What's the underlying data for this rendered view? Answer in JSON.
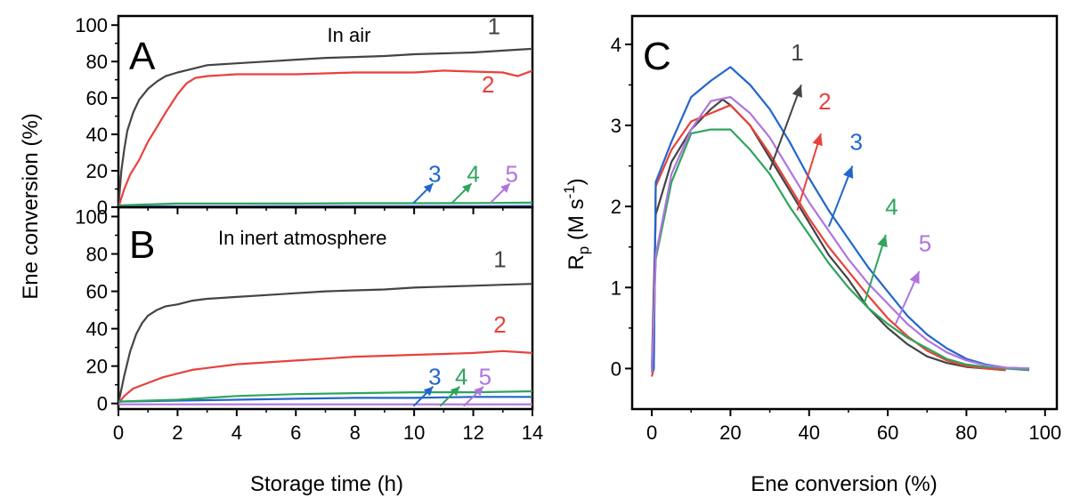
{
  "colors": {
    "1": "#444444",
    "2": "#e8413c",
    "3": "#2266cc",
    "4": "#2ea55c",
    "5": "#b074e0"
  },
  "chart_data": [
    {
      "panel": "A",
      "type": "line",
      "annotation": "In air",
      "xlabel": "Storage time (h)",
      "ylabel": "Ene conversion (%)",
      "xlim": [
        0,
        14
      ],
      "ylim": [
        0,
        105
      ],
      "xticks": [
        "0",
        "2",
        "4",
        "6",
        "8",
        "10",
        "12",
        "14"
      ],
      "yticks": [
        "0",
        "20",
        "40",
        "60",
        "80",
        "100"
      ],
      "series": [
        {
          "label": "1",
          "x": [
            0,
            0.1,
            0.2,
            0.3,
            0.5,
            0.7,
            1.0,
            1.3,
            1.6,
            2.0,
            2.5,
            3.0,
            4.0,
            5.0,
            6.0,
            7.0,
            8.0,
            9.0,
            10.0,
            11.0,
            12.0,
            13.0,
            14.0
          ],
          "y": [
            0,
            20,
            32,
            42,
            52,
            59,
            65,
            69,
            72,
            74,
            76,
            78,
            79,
            80,
            81,
            82,
            82.5,
            83,
            84,
            84.5,
            85,
            86,
            87
          ]
        },
        {
          "label": "2",
          "x": [
            0,
            0.2,
            0.4,
            0.7,
            1.0,
            1.3,
            1.6,
            2.0,
            2.3,
            2.6,
            3.0,
            4.0,
            5.0,
            6.0,
            7.0,
            8.0,
            9.0,
            10.0,
            11.0,
            12.0,
            13.0,
            13.5,
            14.0
          ],
          "y": [
            0,
            10,
            18,
            26,
            36,
            44,
            52,
            62,
            68,
            71,
            72,
            73,
            73,
            73,
            73.5,
            74,
            74,
            74,
            75,
            74.5,
            74,
            72,
            75
          ]
        },
        {
          "label": "3",
          "x": [
            0,
            2,
            4,
            6,
            8,
            10,
            12,
            14
          ],
          "y": [
            0.5,
            0.5,
            0.5,
            0.6,
            0.6,
            0.6,
            0.6,
            0.7
          ]
        },
        {
          "label": "4",
          "x": [
            0,
            1,
            2,
            4,
            6,
            8,
            10,
            12,
            14
          ],
          "y": [
            1,
            1.5,
            2,
            2,
            2,
            2.2,
            2.2,
            2.3,
            2.5
          ]
        },
        {
          "label": "5",
          "x": [
            0,
            2,
            4,
            6,
            8,
            10,
            12,
            14
          ],
          "y": [
            0.2,
            0.2,
            0.2,
            0.2,
            0.2,
            0.2,
            0.2,
            0.2
          ]
        }
      ],
      "labels": [
        {
          "text": "1",
          "x": 12.7,
          "y": 95
        },
        {
          "text": "2",
          "x": 12.5,
          "y": 63
        },
        {
          "text": "3",
          "x": 10.7,
          "y": 14
        },
        {
          "text": "4",
          "x": 12.0,
          "y": 14
        },
        {
          "text": "5",
          "x": 13.3,
          "y": 14
        }
      ]
    },
    {
      "panel": "B",
      "type": "line",
      "annotation": "In inert atmosphere",
      "xlabel": "Storage time (h)",
      "ylabel": "Ene conversion (%)",
      "xlim": [
        0,
        14
      ],
      "ylim": [
        -3,
        105
      ],
      "xticks": [
        "0",
        "2",
        "4",
        "6",
        "8",
        "10",
        "12",
        "14"
      ],
      "yticks": [
        "0",
        "20",
        "40",
        "60",
        "80",
        "100"
      ],
      "series": [
        {
          "label": "1",
          "x": [
            0,
            0.2,
            0.4,
            0.6,
            0.8,
            1.0,
            1.3,
            1.6,
            2.0,
            2.5,
            3.0,
            4.0,
            5.0,
            6.0,
            7.0,
            8.0,
            9.0,
            10.0,
            11.0,
            12.0,
            13.0,
            14.0
          ],
          "y": [
            0,
            15,
            28,
            37,
            43,
            47,
            50,
            52,
            53,
            55,
            56,
            57,
            58,
            59,
            60,
            60.5,
            61,
            62,
            62.5,
            63,
            63.5,
            64
          ]
        },
        {
          "label": "2",
          "x": [
            0,
            0.2,
            0.5,
            1.0,
            1.5,
            2.0,
            2.5,
            3.0,
            4.0,
            5.0,
            6.0,
            7.0,
            8.0,
            9.0,
            10.0,
            11.0,
            12.0,
            13.0,
            14.0
          ],
          "y": [
            0,
            4,
            8,
            11,
            14,
            16,
            18,
            19,
            21,
            22,
            23,
            24,
            25,
            25.5,
            26,
            26.5,
            27,
            28,
            27
          ]
        },
        {
          "label": "3",
          "x": [
            0,
            2,
            4,
            6,
            8,
            10,
            12,
            14
          ],
          "y": [
            1,
            1.5,
            2,
            2.5,
            3,
            3,
            3.5,
            3.5
          ]
        },
        {
          "label": "4",
          "x": [
            0,
            1,
            2,
            4,
            6,
            8,
            10,
            12,
            14
          ],
          "y": [
            1,
            1.5,
            2,
            4,
            5,
            5.5,
            6,
            6,
            6.5
          ]
        },
        {
          "label": "5",
          "x": [
            0,
            2,
            4,
            6,
            8,
            10,
            12,
            14
          ],
          "y": [
            -0.5,
            -0.5,
            -0.5,
            -0.5,
            -0.5,
            -0.5,
            -0.5,
            -0.5
          ]
        }
      ],
      "labels": [
        {
          "text": "1",
          "x": 12.9,
          "y": 73
        },
        {
          "text": "2",
          "x": 12.9,
          "y": 38
        },
        {
          "text": "3",
          "x": 10.7,
          "y": 10
        },
        {
          "text": "4",
          "x": 11.6,
          "y": 10
        },
        {
          "text": "5",
          "x": 12.4,
          "y": 10
        }
      ]
    },
    {
      "panel": "C",
      "type": "line",
      "xlabel": "Ene conversion (%)",
      "ylabel_main": "R",
      "ylabel_sub": "p",
      "ylabel_unit": " (M s",
      "ylabel_sup": "-1",
      "ylabel_close": ")",
      "xlim": [
        -5,
        103
      ],
      "ylim": [
        -0.5,
        4.35
      ],
      "xticks": [
        "0",
        "20",
        "40",
        "60",
        "80",
        "100"
      ],
      "yticks": [
        "0",
        "1",
        "2",
        "3",
        "4"
      ],
      "series": [
        {
          "label": "1",
          "x": [
            0,
            1,
            5,
            10,
            15,
            18,
            20,
            25,
            30,
            35,
            40,
            45,
            50,
            55,
            60,
            65,
            70,
            75,
            80,
            85,
            90
          ],
          "y": [
            0,
            1.9,
            2.55,
            2.95,
            3.2,
            3.32,
            3.25,
            3.0,
            2.6,
            2.2,
            1.8,
            1.4,
            1.1,
            0.75,
            0.5,
            0.3,
            0.15,
            0.07,
            0.02,
            0.0,
            -0.02
          ]
        },
        {
          "label": "2",
          "x": [
            0,
            0.5,
            1,
            5,
            10,
            15,
            20,
            25,
            30,
            35,
            40,
            45,
            50,
            55,
            60,
            65,
            70,
            75,
            80,
            85,
            90
          ],
          "y": [
            -0.1,
            0.0,
            2.25,
            2.7,
            3.05,
            3.15,
            3.25,
            3.0,
            2.65,
            2.25,
            1.85,
            1.5,
            1.2,
            0.9,
            0.62,
            0.4,
            0.22,
            0.1,
            0.03,
            0.0,
            -0.02
          ]
        },
        {
          "label": "3",
          "x": [
            0,
            0.5,
            1,
            5,
            10,
            15,
            20,
            25,
            30,
            35,
            40,
            45,
            50,
            55,
            60,
            65,
            70,
            75,
            80,
            85,
            90,
            96
          ],
          "y": [
            -0.05,
            0.0,
            2.3,
            2.8,
            3.35,
            3.55,
            3.72,
            3.5,
            3.2,
            2.8,
            2.35,
            1.95,
            1.6,
            1.25,
            0.95,
            0.65,
            0.42,
            0.25,
            0.12,
            0.05,
            0.01,
            0.0
          ]
        },
        {
          "label": "4",
          "x": [
            0,
            1,
            5,
            10,
            15,
            20,
            25,
            30,
            35,
            40,
            45,
            50,
            55,
            60,
            65,
            70,
            75,
            80,
            85,
            90,
            96
          ],
          "y": [
            -0.05,
            1.35,
            2.3,
            2.9,
            2.95,
            2.95,
            2.7,
            2.4,
            2.0,
            1.65,
            1.3,
            1.0,
            0.75,
            0.55,
            0.38,
            0.25,
            0.12,
            0.05,
            0.02,
            0.0,
            -0.02
          ]
        },
        {
          "label": "5",
          "x": [
            0,
            1,
            5,
            10,
            15,
            20,
            25,
            30,
            35,
            40,
            45,
            50,
            55,
            60,
            65,
            70,
            75,
            80,
            85,
            90,
            96
          ],
          "y": [
            -0.05,
            1.4,
            2.4,
            2.95,
            3.3,
            3.35,
            3.15,
            2.85,
            2.45,
            2.05,
            1.7,
            1.35,
            1.05,
            0.8,
            0.55,
            0.35,
            0.2,
            0.1,
            0.04,
            0.01,
            0.0
          ]
        }
      ],
      "labels": [
        {
          "text": "1",
          "x": 37,
          "y": 3.8
        },
        {
          "text": "2",
          "x": 44,
          "y": 3.2
        },
        {
          "text": "3",
          "x": 52,
          "y": 2.7
        },
        {
          "text": "4",
          "x": 61,
          "y": 1.9
        },
        {
          "text": "5",
          "x": 69.5,
          "y": 1.45
        }
      ],
      "arrows": [
        {
          "label": "1",
          "x0": 30,
          "y0": 2.45,
          "x1": 38,
          "y1": 3.5
        },
        {
          "label": "2",
          "x0": 37,
          "y0": 1.95,
          "x1": 43,
          "y1": 2.9
        },
        {
          "label": "3",
          "x0": 45,
          "y0": 1.75,
          "x1": 51,
          "y1": 2.5
        },
        {
          "label": "4",
          "x0": 54,
          "y0": 0.8,
          "x1": 59.5,
          "y1": 1.65
        },
        {
          "label": "5",
          "x0": 62,
          "y0": 0.55,
          "x1": 68,
          "y1": 1.2
        }
      ]
    }
  ]
}
